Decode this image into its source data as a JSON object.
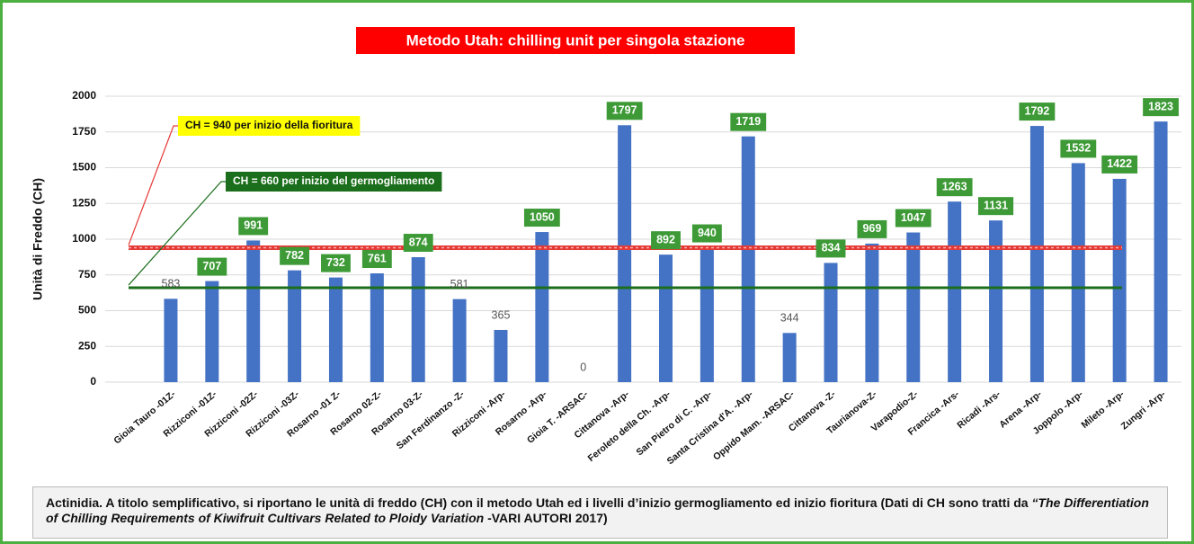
{
  "chart_data": {
    "type": "bar",
    "title": "Metodo Utah: chilling unit per singola stazione",
    "y_label": "Unità di Freddo (CH)",
    "categories": [
      "Gioia Tauro -01Z-",
      "Rizziconi -01Z-",
      "Rizziconi -02Z-",
      "Rizziconi -03Z-",
      "Rosarno -01 Z-",
      "Rosarno 02-Z-",
      "Rosarno 03-Z-",
      "San Ferdinanzo -Z-",
      "Rizziconi -Arp-",
      "Rosarno -Arp-",
      "Gioia T. -ARSAC-",
      "Cittanova -Arp-",
      "Feroleto della Ch. -Arp-",
      "San Pietro di C. -Arp-",
      "Santa Cristina d'A. -Arp-",
      "Oppido Mam. -ARSAC-",
      "Cittanova -Z-",
      "Taurianova-Z-",
      "Varapodio-Z-",
      "Francica -Ars-",
      "Ricadi -Ars-",
      "Arena -Arp-",
      "Joppolo -Arp-",
      "Mileto -Arp-",
      "Zungri -Arp-"
    ],
    "values": [
      583,
      707,
      991,
      782,
      732,
      761,
      874,
      581,
      365,
      1050,
      0,
      1797,
      892,
      940,
      1719,
      344,
      834,
      969,
      1047,
      1263,
      1131,
      1792,
      1532,
      1422,
      1823
    ],
    "label_box_colors": [
      null,
      "#3d9a36",
      "#3d9a36",
      "#3d9a36",
      "#3d9a36",
      "#3d9a36",
      "#3d9a36",
      null,
      null,
      "#3d9a36",
      null,
      "#3d9a36",
      "#3d9a36",
      "#3d9a36",
      "#3d9a36",
      null,
      "#3d9a36",
      "#3d9a36",
      "#3d9a36",
      "#3d9a36",
      "#3d9a36",
      "#3d9a36",
      "#3d9a36",
      "#3d9a36",
      "#3d9a36"
    ],
    "color": "#4472c4",
    "ylim": [
      0,
      2000
    ],
    "yticks": [
      0,
      250,
      500,
      750,
      1000,
      1250,
      1500,
      1750,
      2000
    ],
    "grid": true,
    "reference_lines": [
      {
        "value": 940,
        "color": "#e53935",
        "label": "CH = 940 per inizio della fioritura",
        "label_bg": "#ffff00",
        "label_color": "#111"
      },
      {
        "value": 660,
        "color": "#1b6e1b",
        "label": "CH = 660 per inizio del germogliamento",
        "label_bg": "#1b6e1b",
        "label_color": "#fff"
      }
    ]
  },
  "caption": {
    "text": "Actinidia. A titolo semplificativo, si riportano le unità di freddo (CH) con il metodo Utah ed i livelli d’inizio germogliamento ed inizio fioritura (Dati di CH sono tratti da ",
    "italic": "“The Differentiation of Chilling Requirements of Kiwifruit Cultivars Related to Ploidy Variation",
    "end": " -VARI AUTORI 2017)"
  }
}
